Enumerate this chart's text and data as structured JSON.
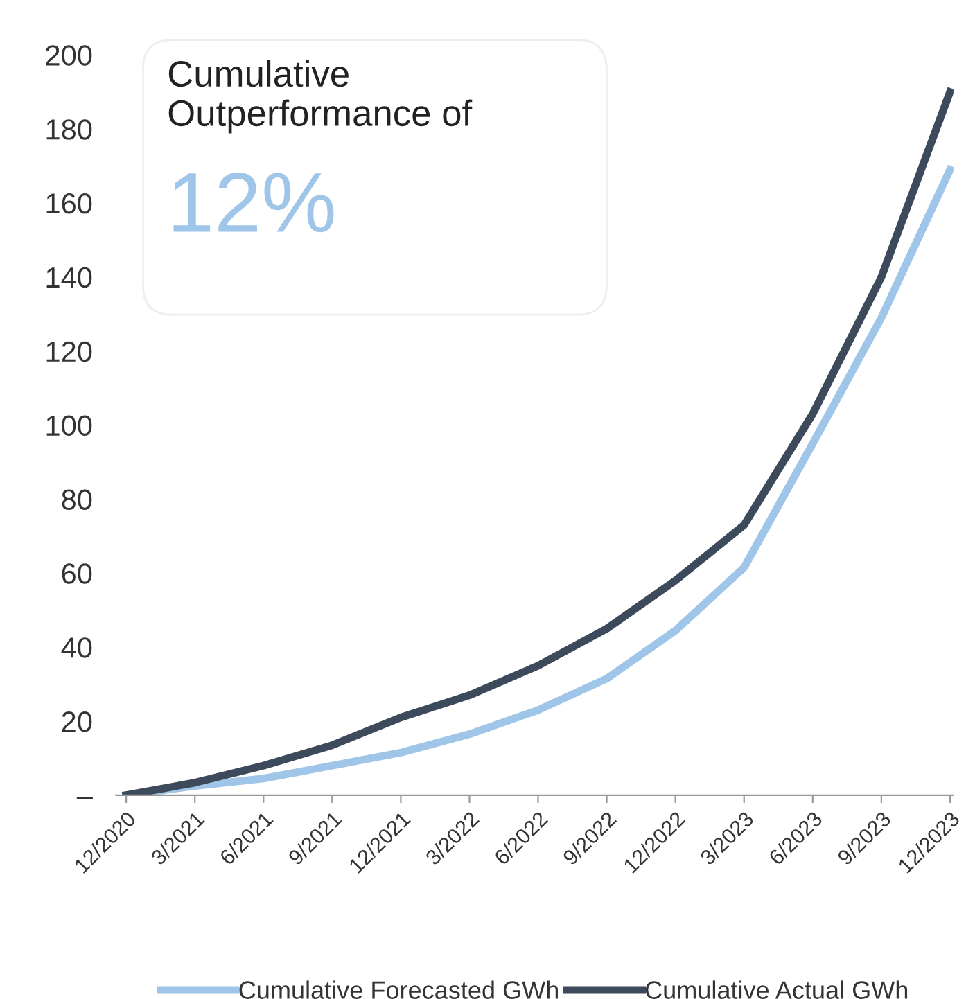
{
  "chart_data": {
    "type": "line",
    "categories": [
      "12/2020",
      "3/2021",
      "6/2021",
      "9/2021",
      "12/2021",
      "3/2022",
      "6/2022",
      "9/2022",
      "12/2022",
      "3/2023",
      "6/2023",
      "9/2023",
      "12/2023"
    ],
    "series": [
      {
        "name": "Cumulative Forecasted GWh",
        "color": "#9fc5e8",
        "values": [
          0,
          2.5,
          4.5,
          8,
          11.5,
          16.5,
          23,
          31.5,
          44.5,
          61.5,
          95,
          129,
          169
        ]
      },
      {
        "name": "Cumulative Actual GWh",
        "color": "#3d4a5c",
        "values": [
          0,
          3.4,
          8,
          13.5,
          21,
          27,
          35,
          45,
          58,
          73,
          103,
          140,
          190
        ]
      }
    ],
    "ylim": [
      0,
      200
    ],
    "yticks": [
      {
        "value": 0,
        "label": "–"
      },
      20,
      40,
      60,
      80,
      100,
      120,
      140,
      160,
      180,
      200
    ],
    "annotations": [
      "Cumulative\nOutperformance of",
      "12%"
    ],
    "grid": false,
    "legend": "bottom",
    "marker": "none",
    "line_style": "solid"
  }
}
